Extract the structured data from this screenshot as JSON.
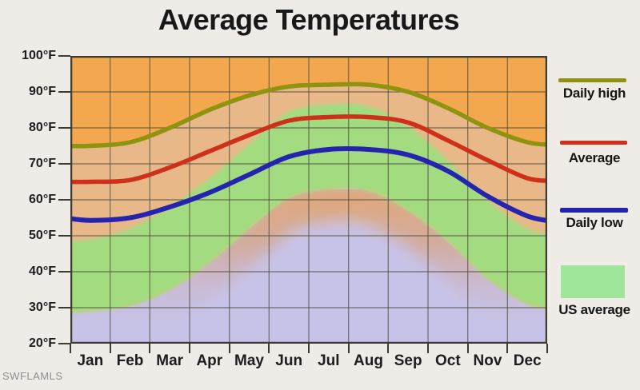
{
  "title": "Average Temperatures",
  "watermark": "SWFLAMLS",
  "legend": [
    {
      "label": "Daily high",
      "type": "line",
      "color": "#8f930f"
    },
    {
      "label": "Average",
      "type": "line",
      "color": "#ce301b"
    },
    {
      "label": "Daily low",
      "type": "line",
      "color": "#2424b0"
    },
    {
      "label": "US average",
      "type": "box",
      "color": "#9fe59a"
    }
  ],
  "chart_data": {
    "type": "line",
    "title": "Average Temperatures",
    "categories": [
      "Jan",
      "Feb",
      "Mar",
      "Apr",
      "May",
      "Jun",
      "Jul",
      "Aug",
      "Sep",
      "Oct",
      "Nov",
      "Dec"
    ],
    "series": [
      {
        "name": "Daily high",
        "color": "#8f930f",
        "width": 5.5,
        "values": [
          75,
          76,
          80,
          85,
          89,
          91.5,
          92,
          92,
          90,
          85.5,
          80,
          76
        ],
        "edge_values": [
          75,
          75.3
        ]
      },
      {
        "name": "Average",
        "color": "#ce301b",
        "width": 5.5,
        "values": [
          65,
          65.5,
          69,
          73.5,
          78,
          82,
          83,
          83,
          81.5,
          76.5,
          71,
          66
        ],
        "edge_values": [
          65,
          65.3
        ]
      },
      {
        "name": "Daily low",
        "color": "#2424b0",
        "width": 6,
        "values": [
          54.3,
          55,
          58,
          62,
          67,
          72,
          74,
          74,
          72.5,
          68,
          61,
          55.5
        ],
        "edge_values": [
          55,
          54
        ]
      }
    ],
    "background_bands": {
      "name": "US average",
      "us_average_high": {
        "values": [
          49,
          52,
          58,
          66,
          75.5,
          84.5,
          86.5,
          86,
          80.5,
          71,
          60,
          52
        ],
        "edge_values": [
          48.5,
          50.5
        ]
      },
      "us_average_low": {
        "values": [
          29,
          30.5,
          35,
          42.5,
          52,
          60.5,
          63,
          62.5,
          57,
          48.5,
          38,
          31
        ],
        "edge_values": [
          28.5,
          30
        ]
      }
    },
    "y_ticks": [
      "100°F",
      "90°F",
      "80°F",
      "70°F",
      "60°F",
      "50°F",
      "40°F",
      "30°F",
      "20°F"
    ],
    "ylim": [
      20,
      100
    ],
    "xlabel": "",
    "ylabel": "",
    "grid": true,
    "legend_position": "right",
    "colors": {
      "plot_background": "#f3a850",
      "band_green": "#a3db80",
      "below_band_salmon": "#dea87f",
      "below_band_lavender": "#c7c3e8",
      "under_high_tint": "rgba(224,199,193,0.5)",
      "gridline": "#4e4e3c",
      "border": "#3c3c30"
    }
  }
}
